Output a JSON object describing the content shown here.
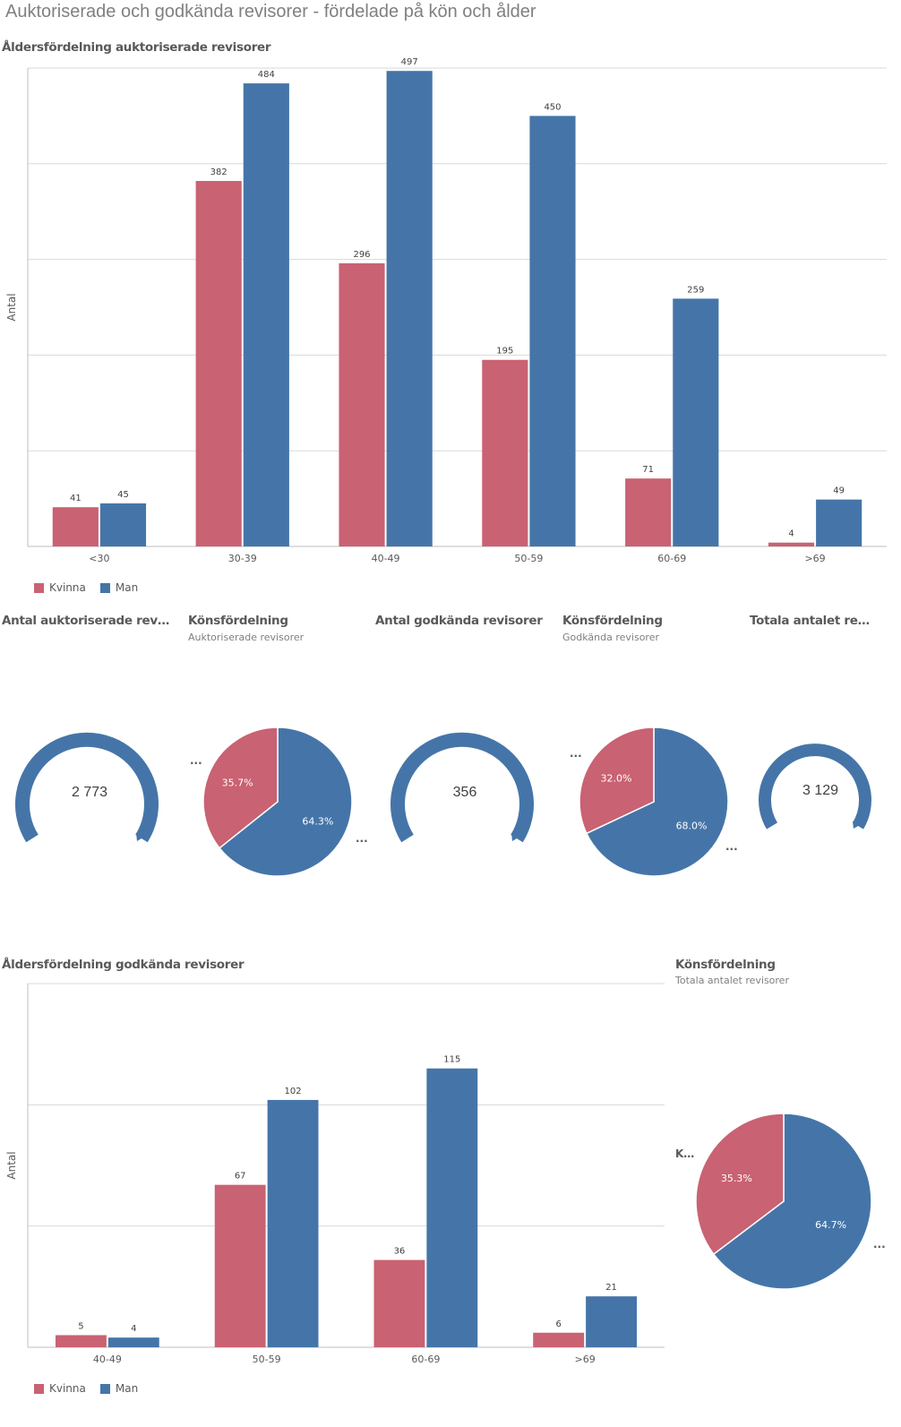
{
  "sheet_title": "Auktoriserade och godkända revisorer - fördelade på kön och ålder",
  "colors": {
    "kvinna": "#c96272",
    "man": "#4575a8",
    "grid": "#d9d9d9"
  },
  "legend": {
    "kvinna": "Kvinna",
    "man": "Man"
  },
  "truncation": "...",
  "chart_data": [
    {
      "type": "bar",
      "title": "Åldersfördelning auktoriserade revisorer",
      "ylabel": "Antal",
      "categories": [
        "<30",
        "30-39",
        "40-49",
        "50-59",
        "60-69",
        ">69"
      ],
      "series": [
        {
          "name": "Kvinna",
          "values": [
            41,
            382,
            296,
            195,
            71,
            4
          ]
        },
        {
          "name": "Man",
          "values": [
            45,
            484,
            497,
            450,
            259,
            49
          ]
        }
      ],
      "ylim": [
        0,
        500
      ],
      "grid": true,
      "legend_position": "bottom-left"
    },
    {
      "type": "bar",
      "title": "Åldersfördelning godkända revisorer",
      "ylabel": "Antal",
      "categories": [
        "40-49",
        "50-59",
        "60-69",
        ">69"
      ],
      "series": [
        {
          "name": "Kvinna",
          "values": [
            5,
            67,
            36,
            6
          ]
        },
        {
          "name": "Man",
          "values": [
            4,
            102,
            115,
            21
          ]
        }
      ],
      "ylim": [
        0,
        150
      ],
      "grid": true,
      "legend_position": "bottom-left"
    },
    {
      "type": "pie",
      "title": "Könsfördelning",
      "subtitle": "Auktoriserade revisorer",
      "labels": [
        "Kvinna",
        "Man"
      ],
      "values": [
        35.7,
        64.3
      ],
      "value_labels": [
        "35.7%",
        "64.3%"
      ]
    },
    {
      "type": "pie",
      "title": "Könsfördelning",
      "subtitle": "Godkända revisorer",
      "labels": [
        "Kvinna",
        "Man"
      ],
      "values": [
        32.0,
        68.0
      ],
      "value_labels": [
        "32.0%",
        "68.0%"
      ]
    },
    {
      "type": "pie",
      "title": "Könsfördelning",
      "subtitle": "Totala antalet revisorer",
      "labels": [
        "Kvinna",
        "Man"
      ],
      "values": [
        35.3,
        64.7
      ],
      "value_labels": [
        "35.3%",
        "64.7%"
      ]
    }
  ],
  "kpis": [
    {
      "title": "Antal auktoriserade rev…",
      "value": "2 773"
    },
    {
      "title": "Antal godkända revisorer",
      "value": "356"
    },
    {
      "title": "Totala antalet re…",
      "value": "3 129"
    }
  ],
  "pie_legend_truncated": "K…"
}
